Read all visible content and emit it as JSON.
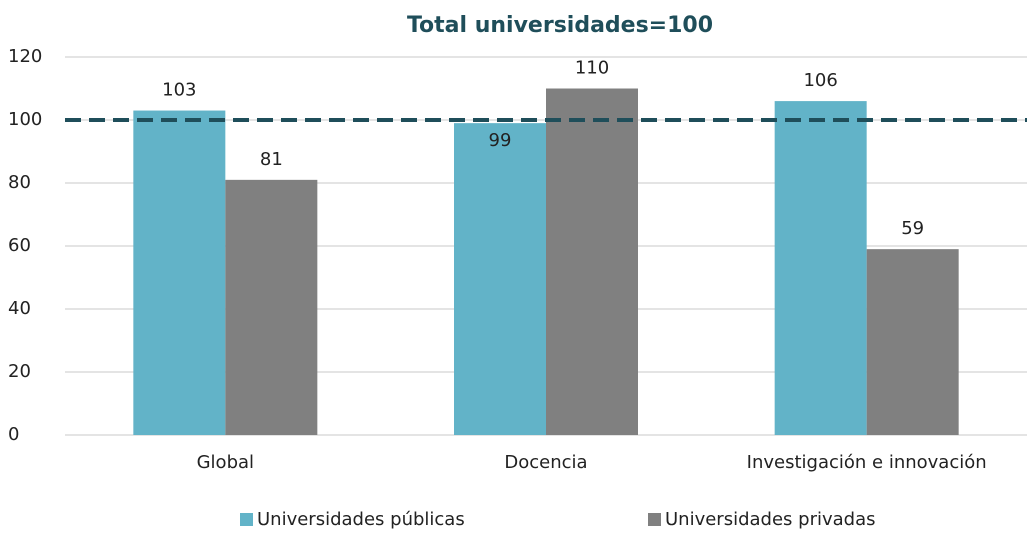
{
  "chart_data": {
    "type": "bar",
    "title": "Total universidades=100",
    "categories": [
      "Global",
      "Docencia",
      "Investigación e innovación"
    ],
    "series": [
      {
        "name": "Universidades públicas",
        "color": "#62b3c8",
        "values": [
          103,
          99,
          106
        ]
      },
      {
        "name": "Universidades privadas",
        "color": "#808080",
        "values": [
          81,
          110,
          59
        ]
      }
    ],
    "ylim": [
      0,
      120
    ],
    "yticks": [
      0,
      20,
      40,
      60,
      80,
      100,
      120
    ],
    "grid": true,
    "reference_line": {
      "value": 100,
      "color": "#1f4e5a",
      "style": "dashed"
    },
    "legend": "bottom"
  }
}
